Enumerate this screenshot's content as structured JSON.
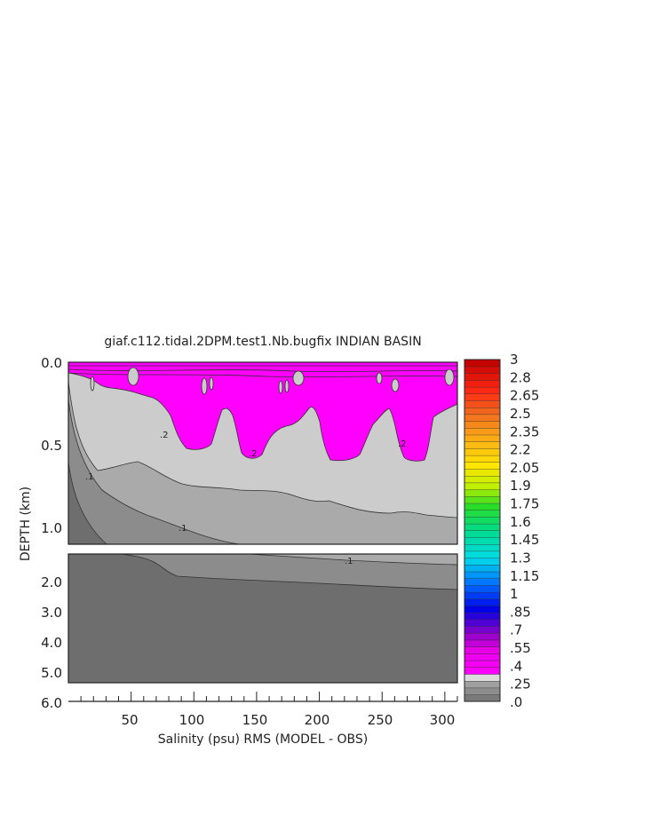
{
  "chart_data": {
    "type": "heatmap",
    "title": "giaf.c112.tidal.2DPM.test1.Nb.bugfix INDIAN BASIN",
    "xlabel": "Salinity (psu) RMS (MODEL - OBS)",
    "ylabel": "DEPTH (km)",
    "x_ticks": [
      "50",
      "100",
      "150",
      "200",
      "250",
      "300"
    ],
    "x_range": [
      0,
      310
    ],
    "upper_panel": {
      "y_range": [
        0.0,
        1.1
      ],
      "y_ticks": [
        "0.0",
        "0.5",
        "1.0"
      ]
    },
    "lower_panel": {
      "y_range": [
        1.1,
        6.0
      ],
      "y_ticks": [
        "2.0",
        "3.0",
        "4.0",
        "5.0",
        "6.0"
      ]
    },
    "contour_labels": [
      ".1",
      ".1",
      ".1",
      ".2",
      ".2",
      ".2"
    ],
    "colorbar": {
      "labels": [
        "3",
        "2.8",
        "2.65",
        "2.5",
        "2.35",
        "2.2",
        "2.05",
        "1.9",
        "1.75",
        "1.6",
        "1.45",
        "1.3",
        "1.15",
        "1",
        ".85",
        ".7",
        ".55",
        ".4",
        ".25",
        ".0"
      ],
      "range": [
        0,
        3
      ]
    },
    "colors": {
      "magenta": "#ff00ff",
      "light_gray": "#cccccc",
      "mid_gray": "#aaaaaa",
      "dark_gray": "#8c8c8c",
      "darkest_gray": "#6e6e6e"
    }
  }
}
